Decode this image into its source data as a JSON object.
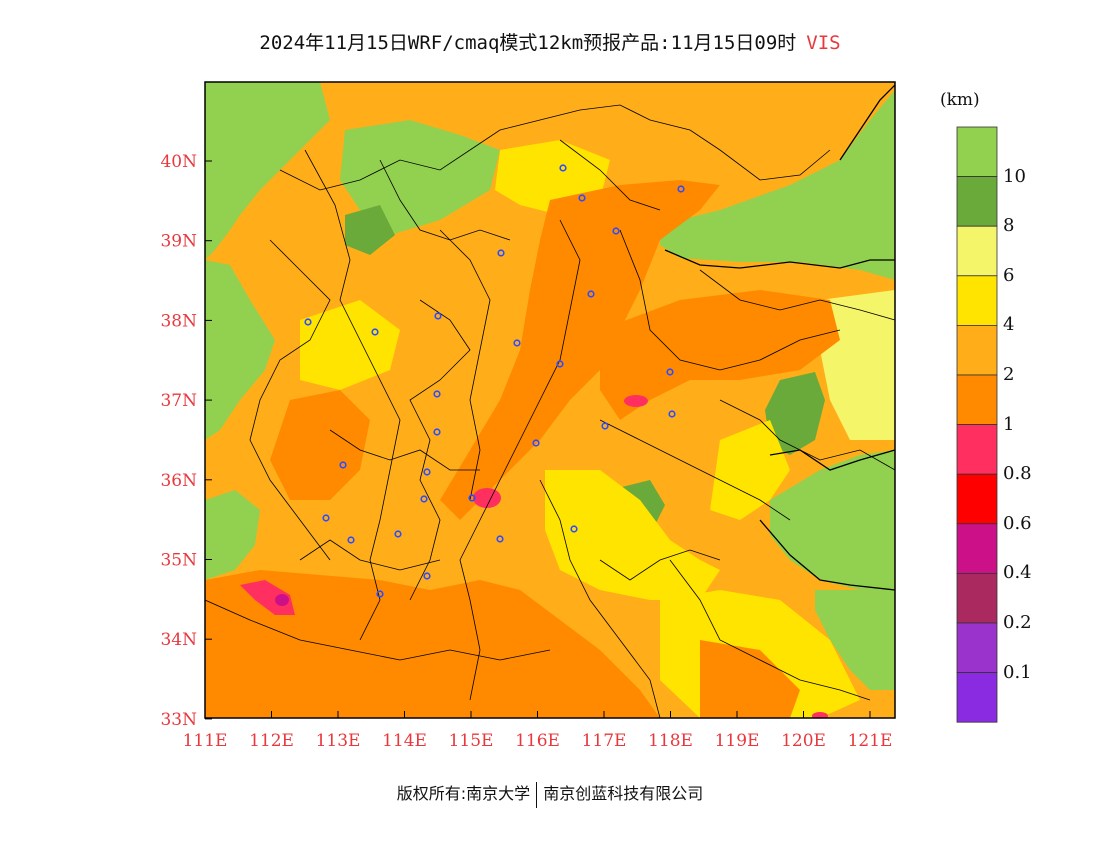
{
  "title": {
    "main": "2024年11月15日WRF/cmaq模式12km预报产品:11月15日09时",
    "variable": "VIS"
  },
  "legend": {
    "unit": "(km)",
    "bins": [
      {
        "label": "",
        "color": "#92d050"
      },
      {
        "label": "10",
        "color": "#6aaa3a"
      },
      {
        "label": "8",
        "color": "#f5f56a"
      },
      {
        "label": "6",
        "color": "#ffe400"
      },
      {
        "label": "4",
        "color": "#ffae1a"
      },
      {
        "label": "2",
        "color": "#ff8a00"
      },
      {
        "label": "1",
        "color": "#ff2f5f"
      },
      {
        "label": "0.8",
        "color": "#ff0000"
      },
      {
        "label": "0.6",
        "color": "#cc1188"
      },
      {
        "label": "0.4",
        "color": "#aa2a60"
      },
      {
        "label": "0.2",
        "color": "#9933cc"
      },
      {
        "label": "0.1",
        "color": "#8a2be2"
      }
    ]
  },
  "axes": {
    "lon_ticks": [
      "111E",
      "112E",
      "113E",
      "114E",
      "115E",
      "116E",
      "117E",
      "118E",
      "119E",
      "120E",
      "121E"
    ],
    "lat_ticks": [
      "40N",
      "39N",
      "38N",
      "37N",
      "36N",
      "35N",
      "34N",
      "33N"
    ]
  },
  "footer": {
    "copyright_left": "版权所有:南京大学",
    "copyright_right": "南京创蓝科技有限公司"
  },
  "colors": {
    "label_red": "#e8383d",
    "border": "#000000",
    "city_marker": "#2b4cff"
  }
}
